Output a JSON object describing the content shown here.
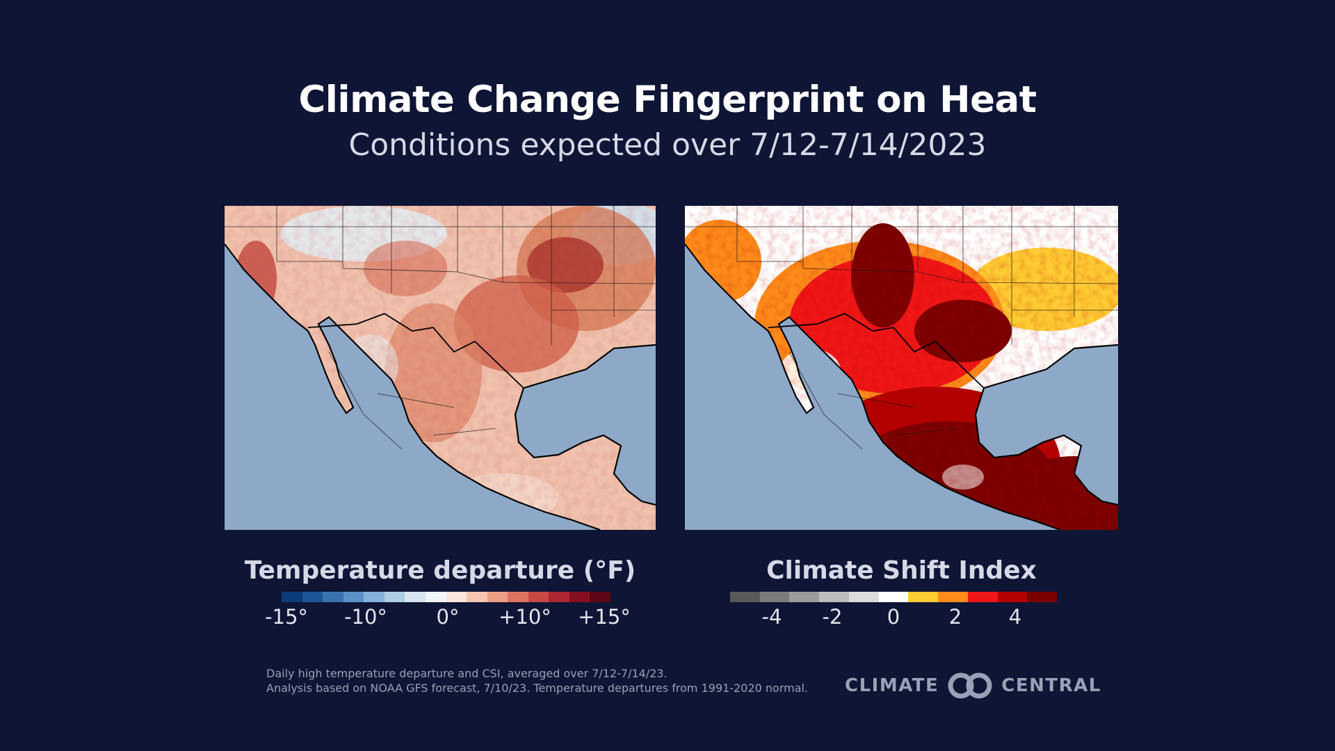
{
  "title": "Climate Change Fingerprint on Heat",
  "subtitle": "Conditions expected over 7/12-7/14/2023",
  "maps": {
    "left": {
      "icon": "temperature-departure-map"
    },
    "right": {
      "icon": "climate-shift-index-map"
    }
  },
  "legends": {
    "temperature": {
      "title": "Temperature departure (°F)",
      "ticks": [
        "-15°",
        "-10°",
        "0°",
        "+10°",
        "+15°"
      ],
      "colors": [
        "#0b3b7a",
        "#1f5596",
        "#3a72b0",
        "#5b91c6",
        "#86b1d8",
        "#b0cde6",
        "#d6e5f1",
        "#f3f6f8",
        "#fbe6dc",
        "#f6c6b0",
        "#ec9f84",
        "#de7460",
        "#c94844",
        "#ac2632",
        "#860f22",
        "#5c0515"
      ]
    },
    "csi": {
      "title": "Climate Shift Index",
      "ticks": [
        "-4",
        "-2",
        "0",
        "2",
        "4"
      ],
      "colors": [
        "#5a5a5a",
        "#7b7b7b",
        "#9c9c9c",
        "#bdbdbd",
        "#dcdcdc",
        "#ffffff",
        "#ffcc33",
        "#ff8c1a",
        "#f01616",
        "#b30000",
        "#7a0000"
      ]
    }
  },
  "footnote": {
    "line1": "Daily high temperature departure and CSI, averaged over 7/12-7/14/23.",
    "line2": "Analysis based on NOAA GFS forecast, 7/10/23. Temperature departures from 1991-2020 normal."
  },
  "logo": {
    "left": "CLIMATE",
    "right": "CENTRAL",
    "icon": "climate-central-logo-icon"
  }
}
